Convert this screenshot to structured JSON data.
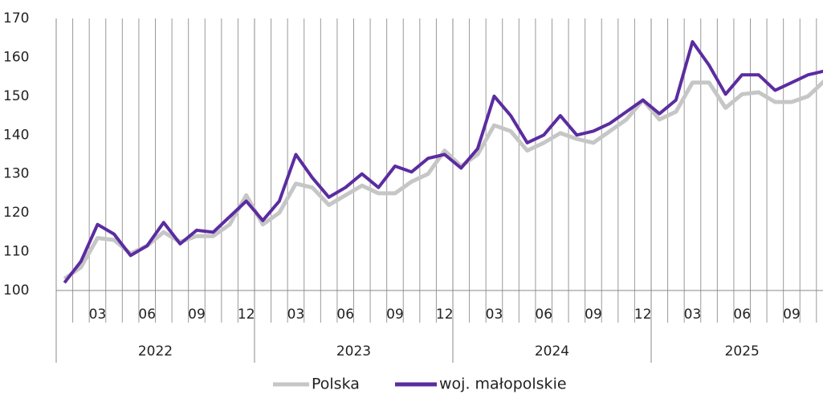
{
  "chart_data": {
    "type": "line",
    "categories": [
      null,
      null,
      "03",
      null,
      null,
      "06",
      null,
      null,
      "09",
      null,
      null,
      "12",
      null,
      null,
      "03",
      null,
      null,
      "06",
      null,
      null,
      "09",
      null,
      null,
      "12",
      null,
      null,
      "03",
      null,
      null,
      "06",
      null,
      null,
      "09",
      null,
      null,
      "12",
      null,
      null,
      "03",
      null,
      null,
      "06",
      null,
      null,
      "09",
      null,
      null
    ],
    "years": [
      "2022",
      "2023",
      "2024",
      "2025"
    ],
    "series": [
      {
        "name": "Polska",
        "color": "#c6c6c6",
        "values": [
          103,
          106,
          113.5,
          113,
          109.5,
          111.5,
          115,
          112.5,
          114,
          114,
          117,
          124.5,
          117,
          120,
          127.5,
          126.5,
          122,
          124.5,
          127,
          125,
          125,
          128,
          130,
          136,
          132,
          135,
          142.5,
          141,
          136,
          138,
          140.5,
          139,
          138,
          141,
          144,
          149,
          144,
          146,
          153.5,
          153.5,
          147,
          150.5,
          151,
          148.5,
          148.5,
          150,
          154
        ]
      },
      {
        "name": "woj. małopolskie",
        "color": "#5b2ca0",
        "values": [
          102,
          107.5,
          117,
          114.5,
          109,
          111.5,
          117.5,
          112,
          115.5,
          115,
          119,
          123,
          118,
          123,
          135,
          129,
          124,
          126.5,
          130,
          126.5,
          132,
          130.5,
          134,
          135,
          131.5,
          136.5,
          150,
          145,
          138,
          140,
          145,
          140,
          141,
          143,
          146,
          149,
          145.5,
          149,
          164,
          158,
          150.5,
          155.5,
          155.5,
          151.5,
          153.5,
          155.5,
          156.5
        ]
      }
    ],
    "ylim": [
      100,
      170
    ],
    "yticks": [
      100,
      110,
      120,
      130,
      140,
      150,
      160,
      170
    ],
    "legend": "bottom"
  }
}
